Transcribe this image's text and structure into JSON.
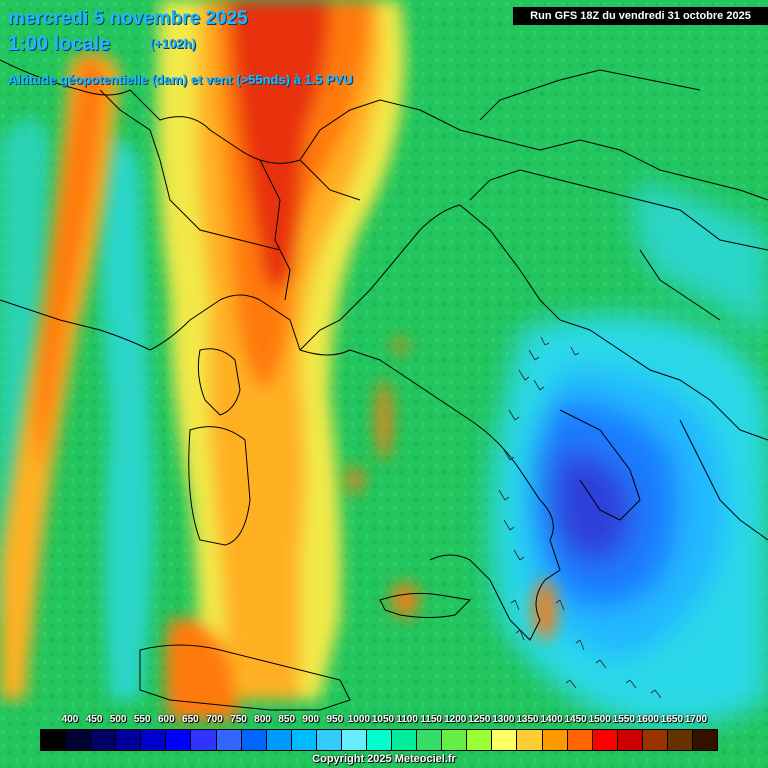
{
  "header": {
    "date": "mercredi 5 novembre 2025",
    "time": "1:00 locale",
    "lead": "(+102h)",
    "parameter": "Altitude géopotentielle (dam) et vent (>55nds) à 1.5 PVU"
  },
  "run_info": "Run GFS 18Z du vendredi 31 octobre 2025",
  "legend": {
    "labels": [
      "400",
      "450",
      "500",
      "550",
      "600",
      "650",
      "700",
      "750",
      "800",
      "850",
      "900",
      "950",
      "1000",
      "1050",
      "1100",
      "1150",
      "1200",
      "1250",
      "1300",
      "1350",
      "1400",
      "1450",
      "1500",
      "1550",
      "1600",
      "1650",
      "1700"
    ],
    "colors": [
      "#000000",
      "#000033",
      "#000066",
      "#000099",
      "#0000cc",
      "#0000ff",
      "#3333ff",
      "#3366ff",
      "#0066ff",
      "#0099ff",
      "#00bbff",
      "#33ccff",
      "#66eeff",
      "#00ffcc",
      "#00ee99",
      "#33dd66",
      "#66ee44",
      "#99ff33",
      "#ffff66",
      "#ffcc33",
      "#ff9900",
      "#ff6600",
      "#ff0000",
      "#cc0000",
      "#993300",
      "#663300",
      "#331100"
    ]
  },
  "copyright": "Copyright 2025 Meteociel.fr",
  "colors": {
    "background_field": "#22c55e",
    "cyclone_core": "#2f3fd9",
    "ridge_axis": "#e8320d"
  }
}
